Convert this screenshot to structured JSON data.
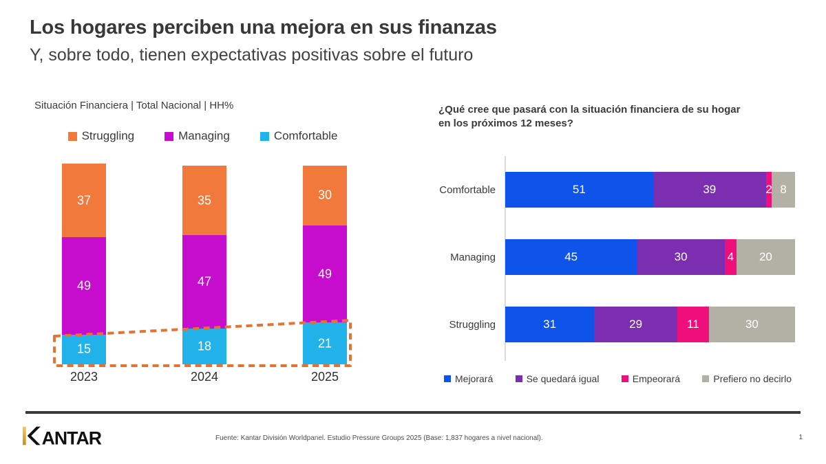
{
  "slide": {
    "title": "Los hogares perciben una mejora en sus finanzas",
    "subtitle": "Y, sobre todo, tienen expectativas positivas sobre el futuro",
    "brand": "KANTAR",
    "source": "Fuente: Kantar División Worldpanel. Estudio Pressure Groups 2025 (Base: 1,837 hogares a nivel nacional).",
    "page_number": "1"
  },
  "colors": {
    "struggling_orange": "#F1793C",
    "managing_magenta": "#C60DCD",
    "comfortable_cyan": "#22B2EA",
    "mejorara_blue": "#0E54EA",
    "igual_purple": "#7B2FB0",
    "empeorara_pink": "#EF0E7B",
    "no_decirlo_gray": "#B3B1A6",
    "highlight_dash_orange": "#E5722F",
    "axis_gray": "#DADADA",
    "footer_rule": "#3A3A3A",
    "kantar_gold": "#E2B13C"
  },
  "chart_data": [
    {
      "type": "bar",
      "orientation": "vertical",
      "stacked": true,
      "title": "Situación Financiera | Total Nacional | HH%",
      "categories": [
        "2023",
        "2024",
        "2025"
      ],
      "series": [
        {
          "name": "Struggling",
          "color": "#F1793C",
          "values": [
            37,
            35,
            30
          ]
        },
        {
          "name": "Managing",
          "color": "#C60DCD",
          "values": [
            49,
            47,
            49
          ]
        },
        {
          "name": "Comfortable",
          "color": "#22B2EA",
          "values": [
            15,
            18,
            21
          ]
        }
      ],
      "legend_position": "top",
      "grid": false,
      "annotation": "dashed orange outline highlighting growth of Comfortable segment across years"
    },
    {
      "type": "bar",
      "orientation": "horizontal",
      "stacked": true,
      "title": "¿Qué cree que pasará con la situación financiera de su hogar en los próximos 12 meses?",
      "categories": [
        "Comfortable",
        "Managing",
        "Struggling"
      ],
      "series": [
        {
          "name": "Mejorará",
          "color": "#0E54EA",
          "values": [
            51,
            45,
            31
          ]
        },
        {
          "name": "Se quedará igual",
          "color": "#7B2FB0",
          "values": [
            39,
            30,
            29
          ]
        },
        {
          "name": "Empeorará",
          "color": "#EF0E7B",
          "values": [
            2,
            4,
            11
          ]
        },
        {
          "name": "Prefiero no decirlo",
          "color": "#B3B1A6",
          "values": [
            8,
            20,
            30
          ]
        }
      ],
      "legend_position": "bottom",
      "grid": false,
      "xlim": [
        0,
        100
      ]
    }
  ]
}
